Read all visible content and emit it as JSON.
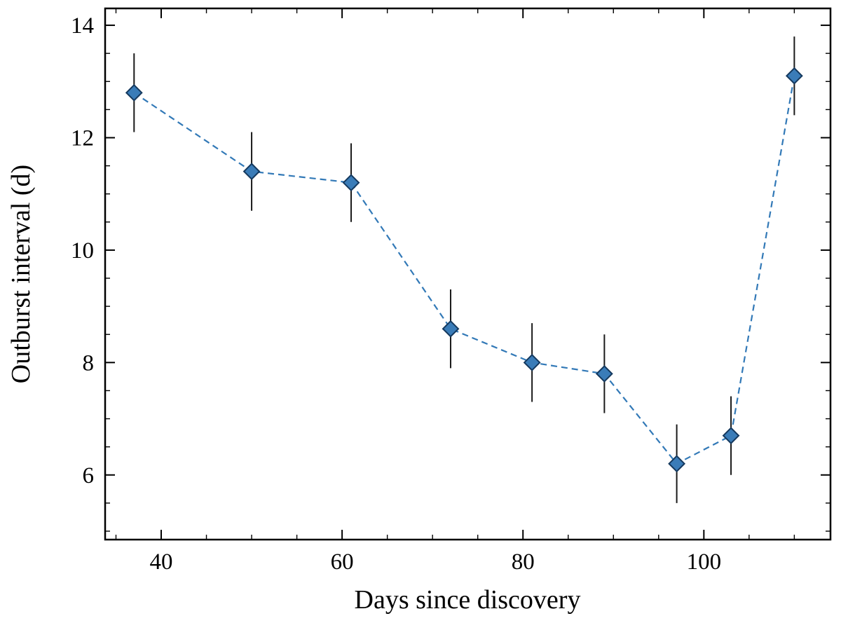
{
  "figure": {
    "background": "#ffffff"
  },
  "chart_data": {
    "type": "line",
    "title": "",
    "xlabel": "Days since discovery",
    "ylabel": "Outburst interval (d)",
    "series": [
      {
        "name": "outburst-interval",
        "x": [
          37,
          50,
          61,
          72,
          81,
          89,
          97,
          103,
          110
        ],
        "y": [
          12.8,
          11.4,
          11.2,
          8.6,
          8.0,
          7.8,
          6.2,
          6.7,
          13.1
        ],
        "yerr": [
          0.7,
          0.7,
          0.7,
          0.7,
          0.7,
          0.7,
          0.7,
          0.7,
          0.7
        ]
      }
    ],
    "xlim": [
      33.8,
      114.0
    ],
    "ylim": [
      4.85,
      14.3
    ],
    "xticks": [
      40,
      60,
      80,
      100
    ],
    "yticks": [
      6,
      8,
      10,
      12,
      14
    ],
    "x_minor_step": 5,
    "y_minor_step": 0.5,
    "grid": false,
    "legend_position": "none",
    "line_style": "dashed",
    "marker": "diamond",
    "colors": {
      "line": "#3279b7",
      "marker_fill": "#3a7cb8",
      "marker_edge": "#15395e",
      "error_bar": "#1a1a1a",
      "axis": "#000000",
      "text": "#000000"
    }
  }
}
